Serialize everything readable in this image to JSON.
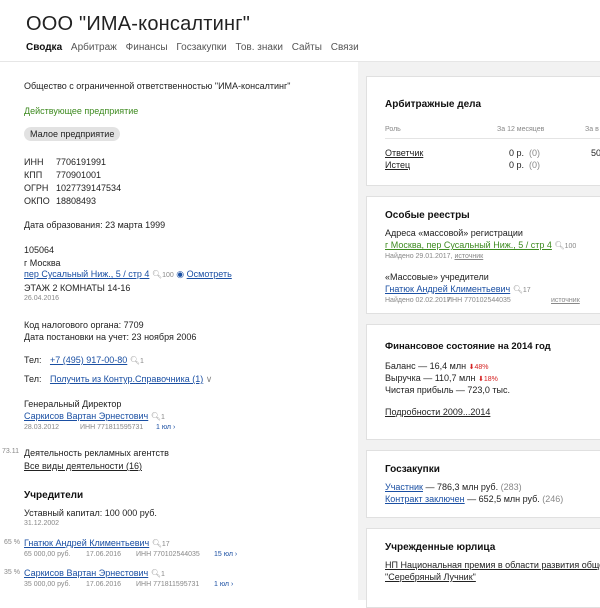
{
  "header": {
    "title": "ООО \"ИМА-консалтинг\"",
    "tabs": [
      "Сводка",
      "Арбитраж",
      "Финансы",
      "Госзакупки",
      "Тов. знаки",
      "Сайты",
      "Связи"
    ]
  },
  "left": {
    "full_name": "Общество с ограниченной ответственностью \"ИМА-консалтинг\"",
    "status": "Действующее предприятие",
    "badge": "Малое предприятие",
    "ids": [
      {
        "label": "ИНН",
        "value": "7706191991"
      },
      {
        "label": "КПП",
        "value": "770901001"
      },
      {
        "label": "ОГРН",
        "value": "1027739147534"
      },
      {
        "label": "ОКПО",
        "value": "18808493"
      }
    ],
    "founded": "Дата образования: 23 марта 1999",
    "address": {
      "zip": "105064",
      "city": "г Москва",
      "street": "пер Сусальный Ниж., 5 / стр 4",
      "street_count": "100",
      "view": "Осмотреть",
      "detail": "ЭТАЖ 2 КОМНАТЫ 14-16",
      "date": "26.04.2016"
    },
    "tax_code": "Код налогового органа: 7709",
    "tax_date": "Дата постановки на учет: 23 ноября 2006",
    "phone_label": "Тел:",
    "phone": "+7 (495) 917-00-80",
    "phone_count": "1",
    "phone2_label": "Тел:",
    "phone2_link": "Получить из Контур.Справочника (1)",
    "director_title": "Генеральный Директор",
    "director_name": "Саркисов Вартан Эрнестович",
    "director_count": "1",
    "director_date": "28.03.2012",
    "director_inn": "ИНН 771811595731",
    "director_ul": "1 юл",
    "activity_code": "73.11",
    "activity": "Деятельность рекламных агентств",
    "activity_link": "Все виды деятельности (16)",
    "founders_title": "Учредители",
    "capital": "Уставный капитал: 100 000 руб.",
    "capital_date": "31.12.2002",
    "founders": [
      {
        "pct": "65 %",
        "name": "Гнатюк Андрей Климентьевич",
        "count": "17",
        "sum": "65 000,00 руб.",
        "date": "17.06.2016",
        "inn": "ИНН 770102544035",
        "ul": "15 юл"
      },
      {
        "pct": "35 %",
        "name": "Саркисов Вартан Эрнестович",
        "count": "1",
        "sum": "35 000,00 руб.",
        "date": "17.06.2016",
        "inn": "ИНН 771811595731",
        "ul": "1 юл"
      }
    ]
  },
  "right": {
    "arb": {
      "title": "Арбитражные дела",
      "col_role": "Роль",
      "col_12": "За 12 месяцев",
      "col_all": "За в",
      "rows": [
        {
          "role": "Ответчик",
          "v12": "0 р.",
          "c12": "(0)",
          "all": "50"
        },
        {
          "role": "Истец",
          "v12": "0 р.",
          "c12": "(0)",
          "all": ""
        }
      ]
    },
    "reg": {
      "title": "Особые реестры",
      "mass_addr": "Адреса «массовой» регистрации",
      "mass_addr_link": "г Москва, пер Сусальный Ниж., 5 / стр 4",
      "mass_addr_count": "100",
      "mass_addr_found": "Найдено 29.01.2017,",
      "mass_addr_src": "источник",
      "mass_founders": "«Массовые» учредители",
      "mass_founder_link": "Гнатюк Андрей Климентьевич",
      "mass_founder_count": "17",
      "mass_founder_found": "Найдено 02.02.2017",
      "mass_founder_inn": "ИНН 770102544035",
      "mass_founder_src": "источник"
    },
    "fin": {
      "title": "Финансовое состояние на 2014 год",
      "balance": "Баланс — 16,4 млн",
      "balance_pct": "48%",
      "revenue": "Выручка — 110,7 млн",
      "revenue_pct": "18%",
      "profit": "Чистая прибыль — 723,0 тыс.",
      "link": "Подробности 2009...2014"
    },
    "gz": {
      "title": "Госзакупки",
      "participant_link": "Участник",
      "participant_val": "— 786,3 млн руб.",
      "participant_cnt": "(283)",
      "contract_link": "Контракт заключен",
      "contract_val": "— 652,5 млн руб.",
      "contract_cnt": "(246)"
    },
    "ul": {
      "title": "Учрежденные юрлица",
      "link1": "НП Национальная премия в области развития общест",
      "link2": "\"Серебряный Лучник\""
    }
  }
}
